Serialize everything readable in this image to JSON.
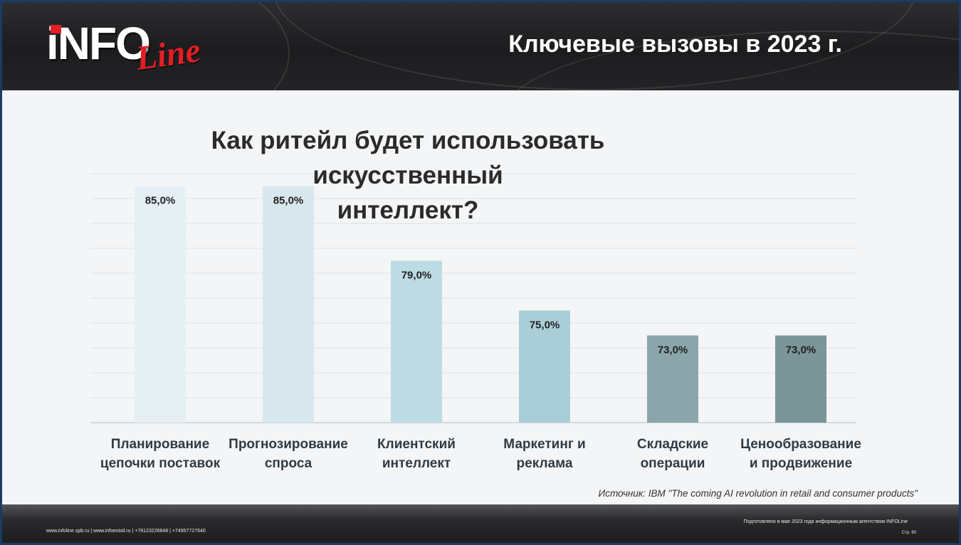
{
  "header": {
    "title": "Ключевые вызовы в 2023 г.",
    "logo": {
      "text_main": "iNFO",
      "text_script": "Line"
    }
  },
  "chart_data": {
    "type": "bar",
    "title": "Как ритейл будет использовать искусственный интеллект?",
    "title_lines": [
      "Как ритейл будет использовать искусственный",
      "интеллект?"
    ],
    "categories": [
      [
        "Планирование",
        "цепочки поставок"
      ],
      [
        "Прогнозирование",
        "спроса"
      ],
      [
        "Клиентский",
        "интеллект"
      ],
      [
        "Маркетинг и",
        "реклама"
      ],
      [
        "Складские",
        "операции"
      ],
      [
        "Ценообразование",
        "и продвижение"
      ]
    ],
    "values": [
      85,
      85,
      79,
      75,
      73,
      73
    ],
    "value_labels": [
      "85,0%",
      "85,0%",
      "79,0%",
      "75,0%",
      "73,0%",
      "73,0%"
    ],
    "bar_colors": [
      "#e6eff3",
      "#d8e8ee",
      "#bcdbe3",
      "#a9ced7",
      "#8aa6ab",
      "#7b9598"
    ],
    "ylim": [
      66,
      86
    ],
    "y_grid": true,
    "xlabel": "",
    "ylabel": "",
    "legend": "none"
  },
  "source": "Источник: IBM \"The coming AI revolution in retail and consumer products\"",
  "footer": {
    "links": "www.infoline.spb.ru | www.infoestoil.ru | +78123226848 | +74957727640",
    "prepared": "Подготовлено в мае 2023 года информационным агентством INFOLine",
    "page": "Стр. 60"
  },
  "colors": {
    "frame": "#1b3b66",
    "header_bg": "#232325",
    "logo_red": "#e31e24",
    "grid": "#dde2e6",
    "axis": "#c9ced2",
    "label_text": "#222222",
    "category_text": "#2f3b44"
  }
}
